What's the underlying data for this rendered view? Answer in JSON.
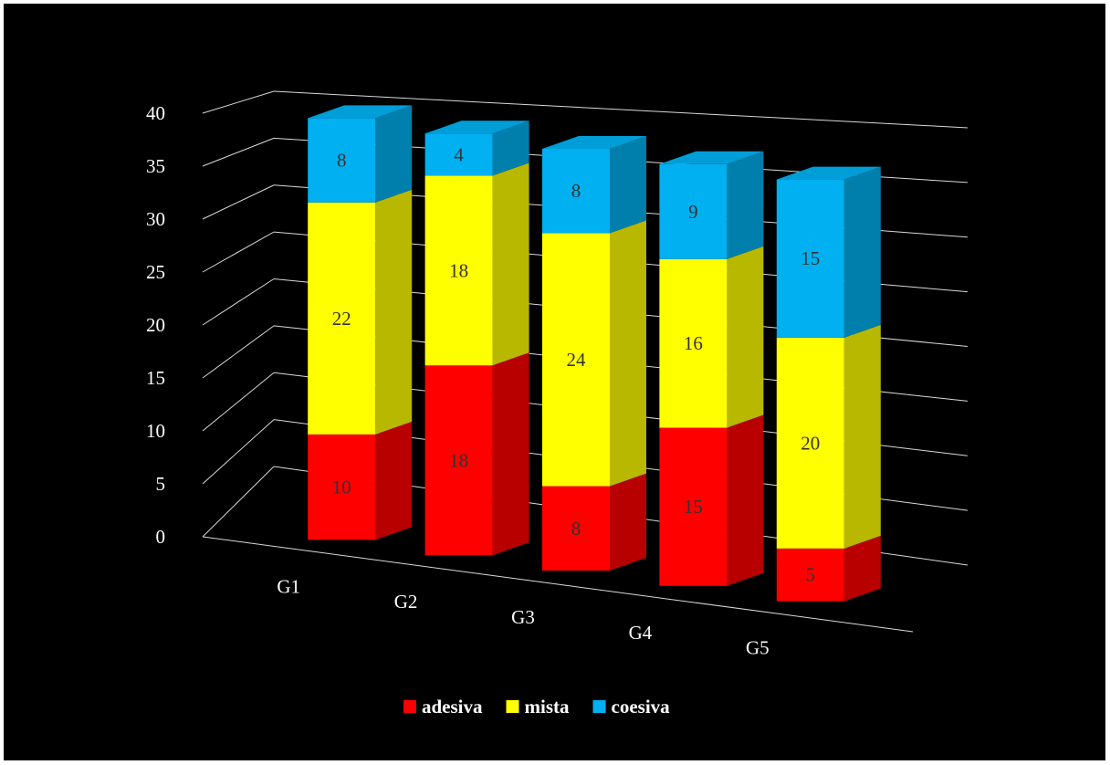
{
  "chart_data": {
    "type": "bar",
    "subtype": "stacked-3d",
    "categories": [
      "G1",
      "G2",
      "G3",
      "G4",
      "G5"
    ],
    "series": [
      {
        "name": "adesiva",
        "color": "#ff0000",
        "values": [
          10,
          18,
          8,
          15,
          5
        ]
      },
      {
        "name": "mista",
        "color": "#ffff00",
        "values": [
          22,
          18,
          24,
          16,
          20
        ]
      },
      {
        "name": "coesiva",
        "color": "#00b0f0",
        "values": [
          8,
          4,
          8,
          9,
          15
        ]
      }
    ],
    "ylim": [
      0,
      40
    ],
    "yticks": [
      "0",
      "5",
      "10",
      "15",
      "20",
      "25",
      "30",
      "35",
      "40"
    ],
    "title": "",
    "xlabel": "",
    "ylabel": "",
    "grid": true,
    "legend_position": "bottom",
    "background": "#000000"
  }
}
